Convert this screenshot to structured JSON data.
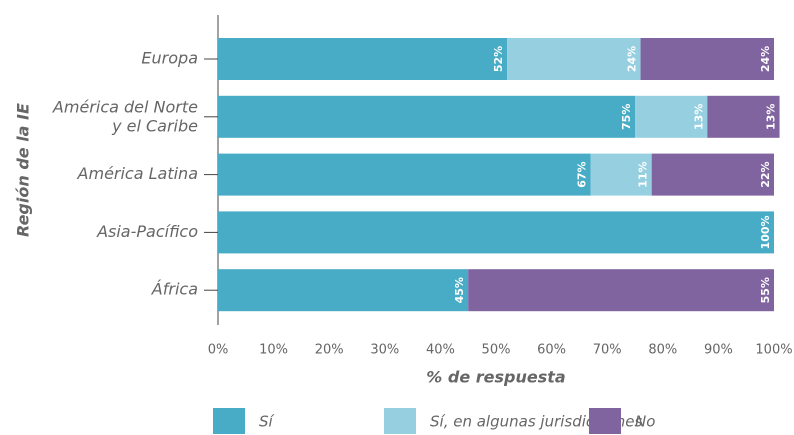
{
  "chart_data": {
    "type": "stacked_barh",
    "xlabel": "% de respuesta",
    "ylabel": "Región de la IE",
    "categories": [
      "Europa",
      "América del Norte\ny el Caribe",
      "América Latina",
      "Asia-Pacífico",
      "África"
    ],
    "series": [
      {
        "name": "Sí",
        "color": "#48acc6",
        "values": [
          52,
          75,
          67,
          100,
          45
        ],
        "value_labels": [
          "52%",
          "75%",
          "67%",
          "100%",
          "45%"
        ]
      },
      {
        "name": "Sí, en algunas jurisdicciones",
        "color": "#96cfdf",
        "values": [
          24,
          13,
          11,
          null,
          null
        ],
        "value_labels": [
          "24%",
          "13%",
          "11%",
          null,
          null
        ]
      },
      {
        "name": "No",
        "color": "#8064a0",
        "values": [
          24,
          13,
          22,
          null,
          55
        ],
        "value_labels": [
          "24%",
          "13%",
          "22%",
          null,
          "55%"
        ]
      }
    ],
    "xlim": [
      0,
      100
    ],
    "xticks": [
      {
        "value": 0,
        "label": "0%"
      },
      {
        "value": 10,
        "label": "10%"
      },
      {
        "value": 20,
        "label": "20%"
      },
      {
        "value": 30,
        "label": "30%"
      },
      {
        "value": 40,
        "label": "40%"
      },
      {
        "value": 50,
        "label": "50%"
      },
      {
        "value": 60,
        "label": "60%"
      },
      {
        "value": 70,
        "label": "70%"
      },
      {
        "value": 80,
        "label": "80%"
      },
      {
        "value": 90,
        "label": "90%"
      },
      {
        "value": 100,
        "label": "100%"
      }
    ],
    "legend": "bottom"
  }
}
